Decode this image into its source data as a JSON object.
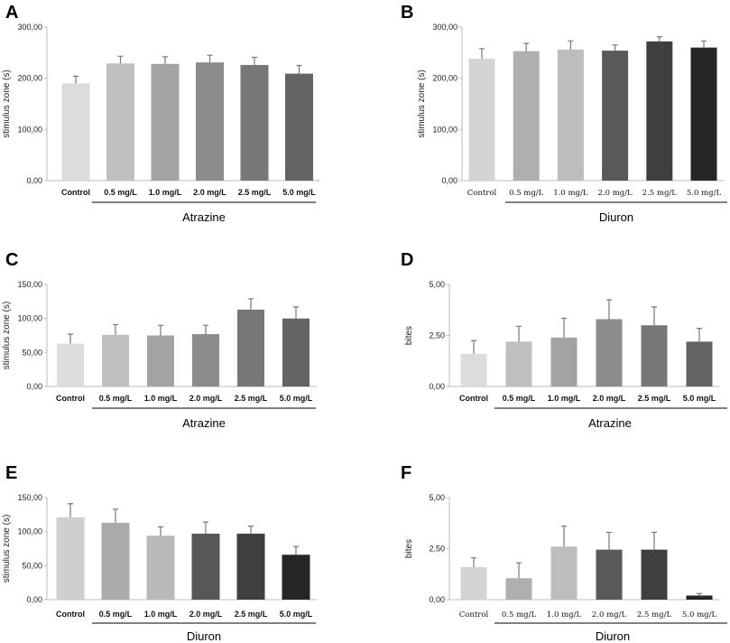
{
  "chart_data": [
    {
      "panel": "A",
      "type": "bar",
      "ylabel": "stimulus zone (s)",
      "ylim": [
        0,
        300
      ],
      "yticks": [
        0,
        100,
        200,
        300
      ],
      "ytick_labels": [
        "0,00",
        "100,00",
        "200,00",
        "300,00"
      ],
      "categories": [
        "Control",
        "0.5 mg/L",
        "1.0 mg/L",
        "2.0 mg/L",
        "2.5 mg/L",
        "5.0 mg/L"
      ],
      "values": [
        190,
        229,
        228,
        231,
        226,
        209
      ],
      "errors": [
        14,
        14,
        14,
        14,
        15,
        16
      ],
      "colors": [
        "#dcdcdc",
        "#bfbfbf",
        "#a3a3a3",
        "#8c8c8c",
        "#777777",
        "#646464"
      ],
      "group_label": "Atrazine",
      "tick_style": "bold"
    },
    {
      "panel": "B",
      "type": "bar",
      "ylabel": "stimulus zone (s)",
      "ylim": [
        0,
        300
      ],
      "yticks": [
        0,
        100,
        200,
        300
      ],
      "ytick_labels": [
        "0,00",
        "100,00",
        "200,00",
        "300,00"
      ],
      "categories": [
        "Control",
        "0.5 mg/L",
        "1.0 mg/L",
        "2.0 mg/L",
        "2.5 mg/L",
        "5.0 mg/L"
      ],
      "values": [
        238,
        253,
        256,
        254,
        272,
        260
      ],
      "errors": [
        20,
        15,
        17,
        11,
        9,
        13
      ],
      "colors": [
        "#d4d4d4",
        "#afafaf",
        "#bdbdbd",
        "#595959",
        "#3f3f3f",
        "#262626"
      ],
      "group_label": "Diuron",
      "tick_style": "serif"
    },
    {
      "panel": "C",
      "type": "bar",
      "ylabel": "stimulus zone (s)",
      "ylim": [
        0,
        150
      ],
      "yticks": [
        0,
        50,
        100,
        150
      ],
      "ytick_labels": [
        "0,00",
        "50,00",
        "100,00",
        "150,00"
      ],
      "categories": [
        "Control",
        "0.5 mg/L",
        "1.0 mg/L",
        "2.0 mg/L",
        "2.5 mg/L",
        "5.0 mg/L"
      ],
      "values": [
        63,
        76,
        75,
        77,
        113,
        100
      ],
      "errors": [
        14,
        15,
        15,
        13,
        16,
        17
      ],
      "colors": [
        "#dcdcdc",
        "#bfbfbf",
        "#a3a3a3",
        "#8c8c8c",
        "#777777",
        "#646464"
      ],
      "group_label": "Atrazine",
      "tick_style": "bold"
    },
    {
      "panel": "D",
      "type": "bar",
      "ylabel": "bites",
      "ylim": [
        0,
        5
      ],
      "yticks": [
        0,
        2.5,
        5
      ],
      "ytick_labels": [
        "0,00",
        "2,50",
        "5,00"
      ],
      "categories": [
        "Control",
        "0.5 mg/L",
        "1.0 mg/L",
        "2.0 mg/L",
        "2.5 mg/L",
        "5.0 mg/L"
      ],
      "values": [
        1.6,
        2.2,
        2.4,
        3.3,
        3.0,
        2.2
      ],
      "errors": [
        0.65,
        0.75,
        0.95,
        0.95,
        0.9,
        0.65
      ],
      "colors": [
        "#dcdcdc",
        "#bfbfbf",
        "#a3a3a3",
        "#8c8c8c",
        "#777777",
        "#646464"
      ],
      "group_label": "Atrazine",
      "tick_style": "bold"
    },
    {
      "panel": "E",
      "type": "bar",
      "ylabel": "stimulus zone (s)",
      "ylim": [
        0,
        150
      ],
      "yticks": [
        0,
        50,
        100,
        150
      ],
      "ytick_labels": [
        "0,00",
        "50,00",
        "100,00",
        "150,00"
      ],
      "categories": [
        "Control",
        "0.5 mg/L",
        "1.0 mg/L",
        "2.0 mg/L",
        "2.5 mg/L",
        "5.0 mg/L"
      ],
      "values": [
        121,
        113,
        94,
        97,
        97,
        66
      ],
      "errors": [
        20,
        20,
        13,
        17,
        11,
        12
      ],
      "colors": [
        "#cfcfcf",
        "#aaaaaa",
        "#b9b9b9",
        "#575757",
        "#3f3f3f",
        "#262626"
      ],
      "group_label": "Diuron",
      "tick_style": "bold"
    },
    {
      "panel": "F",
      "type": "bar",
      "ylabel": "bites",
      "ylim": [
        0,
        5
      ],
      "yticks": [
        0,
        2.5,
        5
      ],
      "ytick_labels": [
        "0,00",
        "2,50",
        "5,00"
      ],
      "categories": [
        "Control",
        "0.5 mg/L",
        "1.0 mg/L",
        "2.0 mg/L",
        "2.5 mg/L",
        "5.0 mg/L"
      ],
      "values": [
        1.6,
        1.05,
        2.6,
        2.45,
        2.45,
        0.2
      ],
      "errors": [
        0.45,
        0.75,
        1.0,
        0.85,
        0.85,
        0.1
      ],
      "colors": [
        "#d4d4d4",
        "#afafaf",
        "#bdbdbd",
        "#595959",
        "#3f3f3f",
        "#262626"
      ],
      "group_label": "Diuron",
      "tick_style": "serif"
    }
  ]
}
